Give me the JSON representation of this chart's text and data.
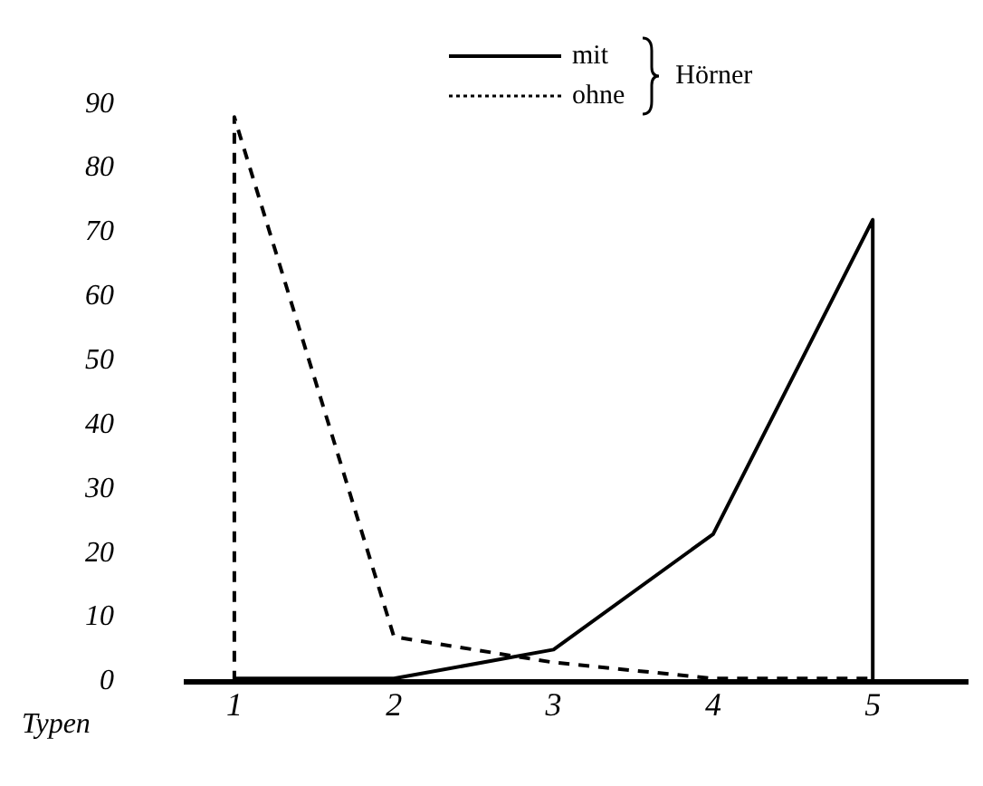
{
  "chart_data": {
    "type": "line",
    "xlabel": "Typen",
    "legend_title": "Hörner",
    "legend": "top",
    "xlim": [
      0.7,
      5.6
    ],
    "xticks": [
      1,
      2,
      3,
      4,
      5
    ],
    "ylim": [
      0,
      90
    ],
    "yticks": [
      0,
      10,
      20,
      30,
      40,
      50,
      60,
      70,
      80,
      90
    ],
    "grid": false,
    "marker": "none",
    "series": [
      {
        "name": "mit",
        "color": "#000000",
        "line_style": "solid",
        "x": [
          1,
          2,
          3,
          4,
          5,
          5
        ],
        "values": [
          0.5,
          0.5,
          5,
          23,
          72,
          0
        ]
      },
      {
        "name": "ohne",
        "color": "#000000",
        "line_style": "dashed",
        "x": [
          1,
          1,
          2,
          3,
          4,
          5
        ],
        "values": [
          0,
          88,
          7,
          3,
          0.5,
          0.5
        ]
      }
    ]
  }
}
